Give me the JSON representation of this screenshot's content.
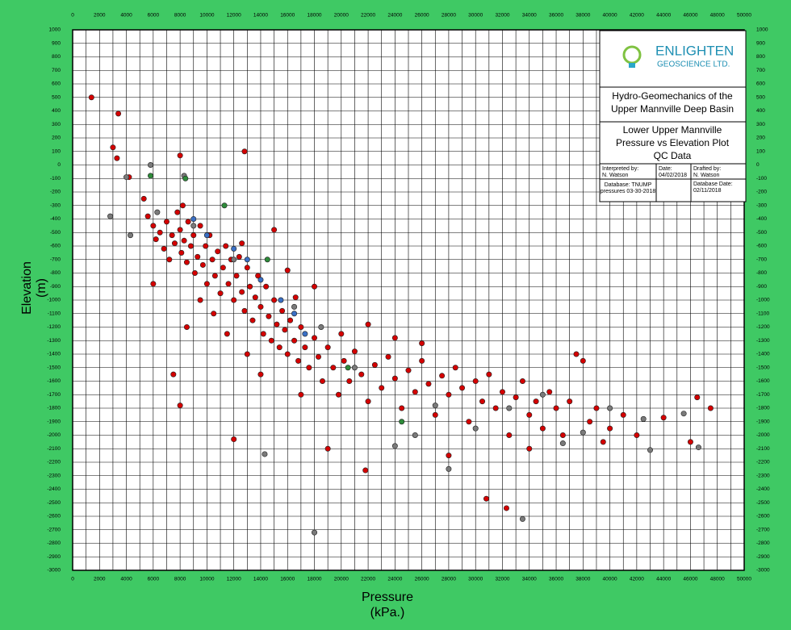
{
  "chart_data": {
    "type": "scatter",
    "xlabel": [
      "Pressure",
      "(kPa.)"
    ],
    "ylabel": [
      "Elevation",
      "(m)"
    ],
    "xlim": [
      0,
      50000
    ],
    "ylim": [
      -3000,
      1000
    ],
    "xticks": [
      0,
      2000,
      4000,
      6000,
      8000,
      10000,
      12000,
      14000,
      16000,
      18000,
      20000,
      22000,
      24000,
      26000,
      28000,
      30000,
      32000,
      34000,
      36000,
      38000,
      40000,
      42000,
      44000,
      46000,
      48000,
      50000
    ],
    "xminor": [
      1000,
      3000,
      5000,
      7000,
      9000,
      11000,
      13000,
      15000,
      17000,
      19000,
      21000,
      23000,
      25000,
      27000,
      29000,
      31000,
      33000,
      35000,
      37000,
      39000,
      41000,
      43000,
      45000,
      47000,
      49000
    ],
    "yticks": [
      -3000,
      -2900,
      -2800,
      -2700,
      -2600,
      -2500,
      -2400,
      -2300,
      -2200,
      -2100,
      -2000,
      -1900,
      -1800,
      -1700,
      -1600,
      -1500,
      -1400,
      -1300,
      -1200,
      -1100,
      -1000,
      -900,
      -800,
      -700,
      -600,
      -500,
      -400,
      -300,
      -200,
      -100,
      0,
      100,
      200,
      300,
      400,
      500,
      600,
      700,
      800,
      900,
      1000
    ],
    "grid": true,
    "series": [
      {
        "color": "#d40000",
        "x": [
          1400,
          3000,
          3400,
          3300,
          4200,
          5300,
          5600,
          6000,
          6200,
          6500,
          6800,
          7000,
          7200,
          7400,
          7600,
          7800,
          8000,
          8100,
          8200,
          8300,
          8500,
          8600,
          8800,
          9000,
          9100,
          9300,
          9500,
          9700,
          9900,
          10000,
          10200,
          10400,
          10600,
          10800,
          11000,
          11200,
          11400,
          11600,
          11800,
          12000,
          12200,
          12400,
          12600,
          12800,
          13000,
          13200,
          13400,
          13600,
          13800,
          14000,
          14200,
          14400,
          14600,
          14800,
          15000,
          15200,
          15400,
          15600,
          15800,
          16000,
          16200,
          16500,
          16800,
          17000,
          17300,
          17600,
          18000,
          18300,
          18600,
          19000,
          19400,
          19800,
          20200,
          20600,
          21000,
          21500,
          22000,
          22500,
          23000,
          23500,
          24000,
          24500,
          25000,
          25500,
          26000,
          26500,
          27000,
          27500,
          28000,
          28500,
          29000,
          29500,
          30000,
          30500,
          31000,
          31500,
          32000,
          32500,
          33000,
          33500,
          34000,
          34500,
          35000,
          35500,
          36000,
          36500,
          37000,
          37500,
          38000,
          38500,
          39000,
          40000,
          41000,
          42000,
          44000,
          46000,
          46500,
          47500,
          30800,
          32300,
          21800,
          19000,
          12000,
          8000,
          7500,
          6000,
          8000,
          12800,
          16000,
          15000,
          12600,
          16600,
          18000,
          20000,
          22000,
          26000,
          24000,
          10500,
          11500,
          13000,
          14000,
          17000,
          9500,
          8500,
          28000,
          34000,
          39500
        ],
        "values": [
          500,
          130,
          380,
          50,
          -90,
          -250,
          -380,
          -450,
          -550,
          -500,
          -620,
          -420,
          -700,
          -520,
          -580,
          -350,
          -480,
          -650,
          -300,
          -560,
          -720,
          -420,
          -600,
          -520,
          -800,
          -680,
          -450,
          -740,
          -600,
          -880,
          -520,
          -700,
          -820,
          -640,
          -950,
          -760,
          -600,
          -880,
          -700,
          -1000,
          -820,
          -680,
          -940,
          -1080,
          -760,
          -900,
          -1150,
          -980,
          -820,
          -1050,
          -1250,
          -900,
          -1120,
          -1300,
          -1000,
          -1180,
          -1350,
          -1080,
          -1220,
          -1400,
          -1150,
          -1300,
          -1450,
          -1200,
          -1350,
          -1500,
          -1280,
          -1420,
          -1600,
          -1350,
          -1500,
          -1700,
          -1450,
          -1600,
          -1380,
          -1550,
          -1750,
          -1480,
          -1650,
          -1420,
          -1580,
          -1800,
          -1520,
          -1680,
          -1450,
          -1620,
          -1850,
          -1560,
          -1700,
          -1500,
          -1650,
          -1900,
          -1600,
          -1750,
          -1550,
          -1800,
          -1680,
          -2000,
          -1720,
          -1600,
          -1850,
          -1750,
          -1950,
          -1680,
          -1800,
          -2000,
          -1750,
          -1400,
          -1450,
          -1900,
          -1800,
          -1950,
          -1850,
          -2000,
          -1870,
          -2050,
          -1720,
          -1800,
          -2470,
          -2540,
          -2260,
          -2100,
          -2030,
          -1780,
          -1550,
          -880,
          70,
          100,
          -780,
          -480,
          -580,
          -980,
          -900,
          -1250,
          -1180,
          -1320,
          -1280,
          -1100,
          -1250,
          -1400,
          -1550,
          -1700,
          -1000,
          -1200,
          -2150,
          -2100,
          -2050
        ]
      },
      {
        "color": "#7a7a7a",
        "x": [
          4000,
          5800,
          2800,
          4300,
          8300,
          6300,
          9000,
          12000,
          16500,
          18500,
          21000,
          24000,
          25500,
          27000,
          28000,
          30000,
          32500,
          33500,
          35000,
          38000,
          40000,
          42500,
          43000,
          45500,
          46600,
          18000,
          14300,
          36500
        ],
        "values": [
          -90,
          0,
          -380,
          -520,
          -80,
          -350,
          -450,
          -700,
          -1050,
          -1200,
          -1500,
          -2080,
          -2000,
          -1780,
          -2250,
          -1950,
          -1800,
          -2620,
          -1700,
          -1980,
          -1800,
          -1880,
          -2110,
          -1840,
          -2090,
          -2720,
          -2140,
          -2060
        ]
      },
      {
        "color": "#3a6fc4",
        "x": [
          10000,
          12000,
          14000,
          15500,
          16500,
          17300,
          9000,
          13000
        ],
        "values": [
          -520,
          -620,
          -850,
          -1000,
          -1100,
          -1250,
          -400,
          -700
        ]
      },
      {
        "color": "#2e8b3a",
        "x": [
          5800,
          8400,
          11300,
          20500,
          14500,
          24500
        ],
        "values": [
          -80,
          -100,
          -300,
          -1500,
          -700,
          -1900
        ]
      }
    ]
  },
  "title_block": {
    "logo_top": "ENLIGHTEN",
    "logo_bottom": "GEOSCIENCE LTD.",
    "project": [
      "Hydro-Geomechanics of the",
      "Upper Mannville Deep Basin"
    ],
    "plot_title": [
      "Lower Upper Mannville",
      "Pressure vs Elevation Plot",
      "QC Data"
    ],
    "interpreted_label": "Interpreted by:",
    "interpreted": "N. Watson",
    "date_label": "Date:",
    "date": "04/02/2018",
    "drafted_label": "Drafted by:",
    "drafted": "N. Watson",
    "database": [
      "Database: TNUMP",
      "pressures 03-30-2018"
    ],
    "database_date_label": "Database Date:",
    "database_date": "02/11/2018"
  }
}
